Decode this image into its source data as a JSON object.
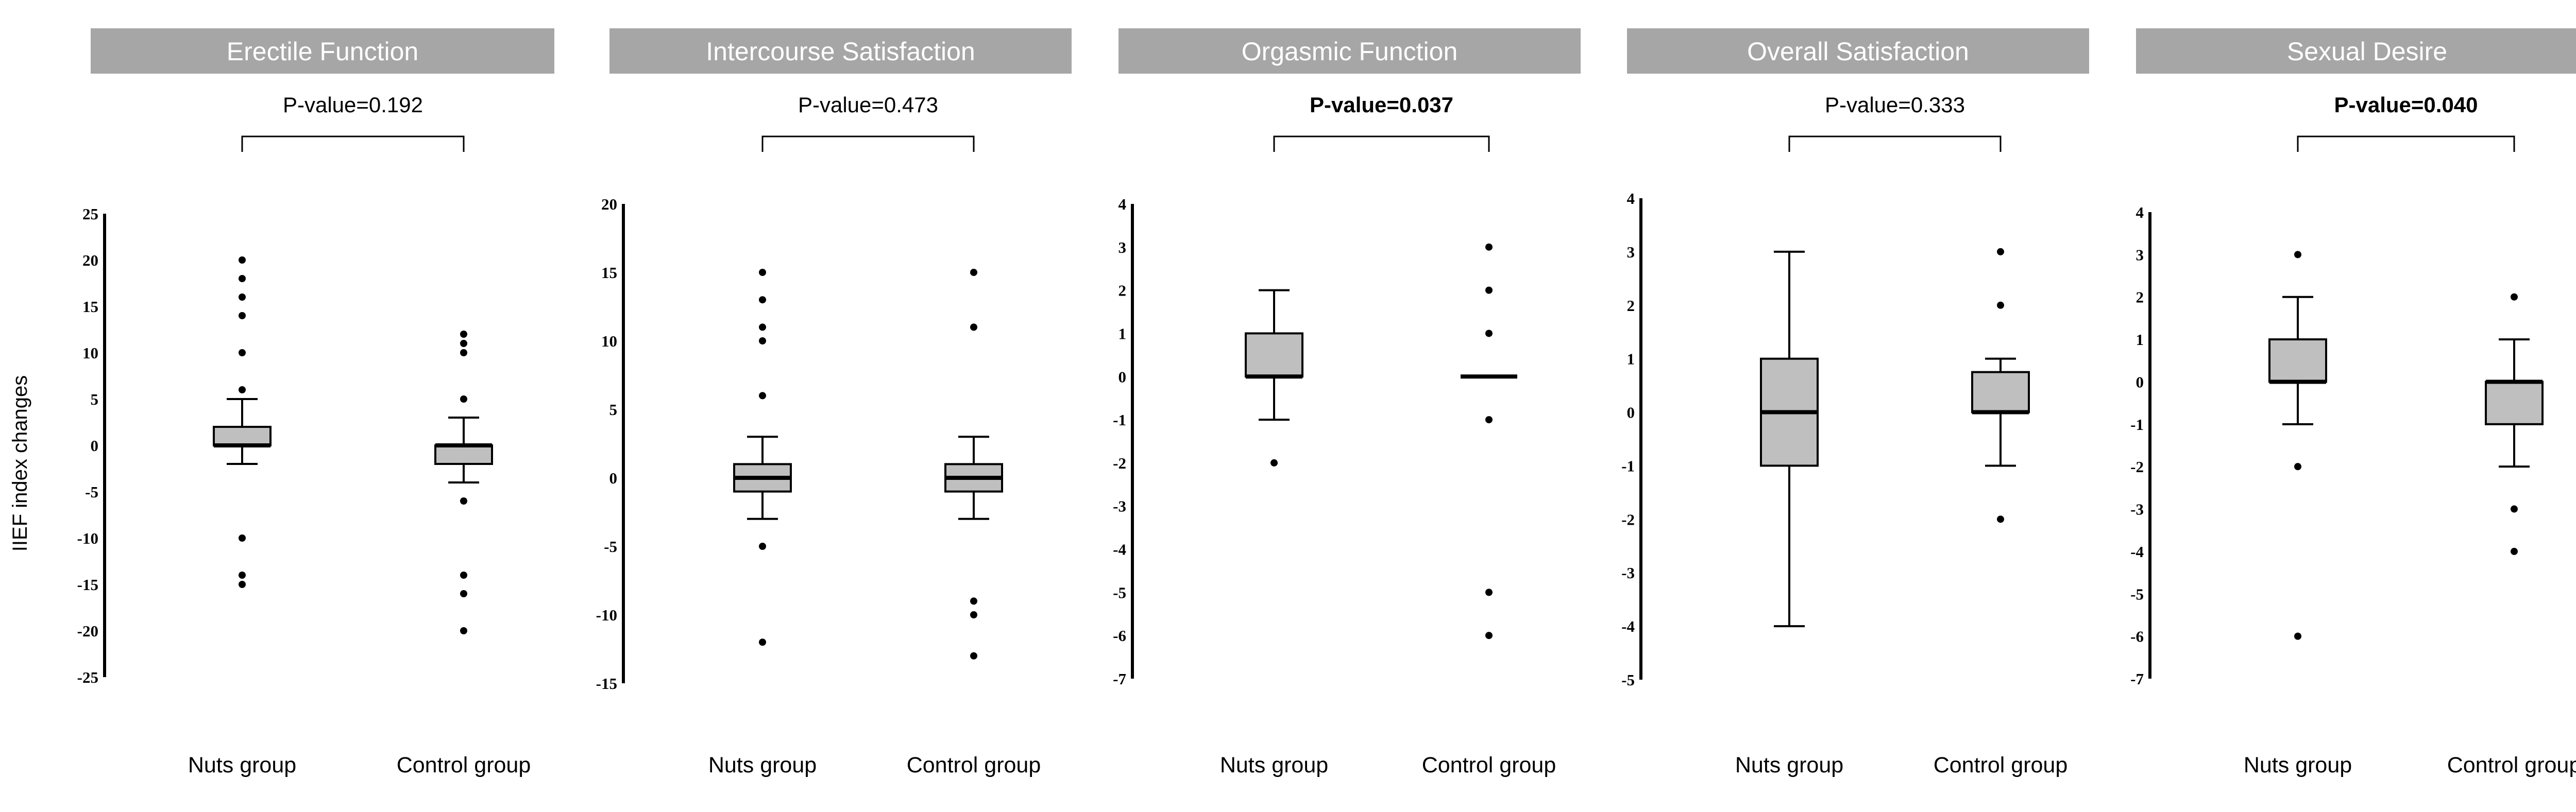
{
  "figure": {
    "ylabel": "IIEF index changes"
  },
  "chart_data": [
    {
      "type": "box",
      "title": "Erectile Function",
      "p_value": "P-value=0.192",
      "p_bold": false,
      "ylim": [
        -25,
        25
      ],
      "yticks": [
        25,
        20,
        15,
        10,
        5,
        0,
        -5,
        -10,
        -15,
        -20,
        -25
      ],
      "categories": [
        "Nuts group",
        "Control group"
      ],
      "groups": [
        {
          "name": "Nuts group",
          "q1": 0,
          "median": 0,
          "q3": 2,
          "whisker_low": -2,
          "whisker_high": 5,
          "outliers": [
            20,
            18,
            16,
            14,
            10,
            6,
            -10,
            -14,
            -15
          ]
        },
        {
          "name": "Control group",
          "q1": -2,
          "median": 0,
          "q3": 0,
          "whisker_low": -4,
          "whisker_high": 3,
          "outliers": [
            12,
            11,
            10,
            5,
            -6,
            -14,
            -16,
            -20
          ]
        }
      ]
    },
    {
      "type": "box",
      "title": "Intercourse Satisfaction",
      "p_value": "P-value=0.473",
      "p_bold": false,
      "ylim": [
        -15,
        20
      ],
      "yticks": [
        20,
        15,
        10,
        5,
        0,
        -5,
        -10,
        -15
      ],
      "categories": [
        "Nuts group",
        "Control group"
      ],
      "groups": [
        {
          "name": "Nuts group",
          "q1": -1,
          "median": 0,
          "q3": 1,
          "whisker_low": -3,
          "whisker_high": 3,
          "outliers": [
            15,
            13,
            11,
            10,
            6,
            -5,
            -12
          ]
        },
        {
          "name": "Control group",
          "q1": -1,
          "median": 0,
          "q3": 1,
          "whisker_low": -3,
          "whisker_high": 3,
          "outliers": [
            15,
            11,
            -9,
            -10,
            -13
          ]
        }
      ]
    },
    {
      "type": "box",
      "title": "Orgasmic Function",
      "p_value": "P-value=0.037",
      "p_bold": true,
      "ylim": [
        -7,
        4
      ],
      "yticks": [
        4,
        3,
        2,
        1,
        0,
        -1,
        -2,
        -3,
        -4,
        -5,
        -6,
        -7
      ],
      "categories": [
        "Nuts group",
        "Control group"
      ],
      "groups": [
        {
          "name": "Nuts group",
          "q1": 0,
          "median": 0,
          "q3": 1,
          "whisker_low": -1,
          "whisker_high": 2,
          "outliers": [
            -2
          ]
        },
        {
          "name": "Control group",
          "q1": 0,
          "median": 0,
          "q3": 0,
          "whisker_low": 0,
          "whisker_high": 0,
          "outliers": [
            3,
            2,
            1,
            -1,
            -5,
            -6
          ]
        }
      ]
    },
    {
      "type": "box",
      "title": "Overall Satisfaction",
      "p_value": "P-value=0.333",
      "p_bold": false,
      "ylim": [
        -5,
        4
      ],
      "yticks": [
        4,
        3,
        2,
        1,
        0,
        -1,
        -2,
        -3,
        -4,
        -5
      ],
      "categories": [
        "Nuts group",
        "Control group"
      ],
      "groups": [
        {
          "name": "Nuts group",
          "q1": -1,
          "median": 0,
          "q3": 1,
          "whisker_low": -4,
          "whisker_high": 3,
          "outliers": []
        },
        {
          "name": "Control group",
          "q1": 0,
          "median": 0,
          "q3": 0.75,
          "whisker_low": -1,
          "whisker_high": 1,
          "outliers": [
            3,
            2,
            -2
          ]
        }
      ]
    },
    {
      "type": "box",
      "title": "Sexual Desire",
      "p_value": "P-value=0.040",
      "p_bold": true,
      "ylim": [
        -7,
        4
      ],
      "yticks": [
        4,
        3,
        2,
        1,
        0,
        -1,
        -2,
        -3,
        -4,
        -5,
        -6,
        -7
      ],
      "categories": [
        "Nuts group",
        "Control group"
      ],
      "groups": [
        {
          "name": "Nuts group",
          "q1": 0,
          "median": 0,
          "q3": 1,
          "whisker_low": -1,
          "whisker_high": 2,
          "outliers": [
            3,
            -2,
            -6
          ]
        },
        {
          "name": "Control group",
          "q1": -1,
          "median": 0,
          "q3": 0,
          "whisker_low": -2,
          "whisker_high": 1,
          "outliers": [
            2,
            -3,
            -4
          ]
        }
      ]
    }
  ]
}
